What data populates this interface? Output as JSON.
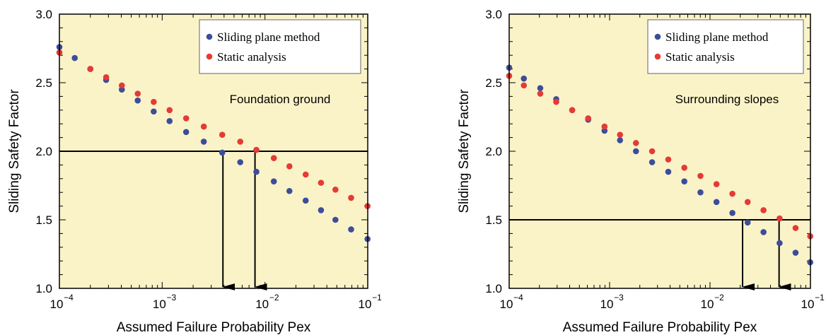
{
  "colors": {
    "plot_bg": "#fbf3c8",
    "sliding_plane": "#3d4d9a",
    "static_analysis": "#e53a35",
    "legend_bg": "#ffffff"
  },
  "chart_data": [
    {
      "type": "scatter",
      "x_scale": "log",
      "xlim": [
        0.0001,
        0.1
      ],
      "ylim": [
        1.0,
        3.0
      ],
      "xlabel": "Assumed Failure Probability Pex",
      "ylabel": "Sliding Safety Factor",
      "x_ticks": [
        {
          "value": 0.0001,
          "base": "10",
          "exp": "−4"
        },
        {
          "value": 0.001,
          "base": "10",
          "exp": "−3"
        },
        {
          "value": 0.01,
          "base": "10",
          "exp": "−2"
        },
        {
          "value": 0.1,
          "base": "10",
          "exp": "−1"
        }
      ],
      "y_ticks": [
        "1.0",
        "1.5",
        "2.0",
        "2.5",
        "3.0"
      ],
      "grid": false,
      "legend_position": "top-right",
      "annotation": "Foundation ground",
      "threshold_y": 2.0,
      "arrows_x": [
        0.0039,
        0.008
      ],
      "series": [
        {
          "name": "Sliding plane method",
          "color": "#3d4d9a",
          "x": [
            0.0001,
            0.000141,
            0.0002,
            0.000285,
            0.000405,
            0.000578,
            0.000827,
            0.00118,
            0.00171,
            0.00254,
            0.00384,
            0.00575,
            0.00825,
            0.0122,
            0.0173,
            0.0249,
            0.0351,
            0.0485,
            0.0689,
            0.0995
          ],
          "y": [
            2.76,
            2.68,
            2.6,
            2.52,
            2.45,
            2.37,
            2.29,
            2.22,
            2.14,
            2.07,
            1.99,
            1.92,
            1.85,
            1.78,
            1.71,
            1.64,
            1.57,
            1.5,
            1.43,
            1.36
          ]
        },
        {
          "name": "Static analysis",
          "color": "#e53a35",
          "x": [
            0.0001,
            0.0002,
            0.000285,
            0.000405,
            0.000578,
            0.000827,
            0.00118,
            0.00171,
            0.00254,
            0.00384,
            0.00575,
            0.00825,
            0.0122,
            0.0173,
            0.0249,
            0.0351,
            0.0485,
            0.0689,
            0.0995
          ],
          "y": [
            2.72,
            2.6,
            2.54,
            2.48,
            2.42,
            2.36,
            2.3,
            2.24,
            2.18,
            2.12,
            2.07,
            2.01,
            1.95,
            1.89,
            1.83,
            1.77,
            1.72,
            1.66,
            1.6
          ]
        }
      ]
    },
    {
      "type": "scatter",
      "x_scale": "log",
      "xlim": [
        0.0001,
        0.1
      ],
      "ylim": [
        1.0,
        3.0
      ],
      "xlabel": "Assumed Failure Probability Pex",
      "ylabel": "Sliding Safety Factor",
      "x_ticks": [
        {
          "value": 0.0001,
          "base": "10",
          "exp": "−4"
        },
        {
          "value": 0.001,
          "base": "10",
          "exp": "−3"
        },
        {
          "value": 0.01,
          "base": "10",
          "exp": "−2"
        },
        {
          "value": 0.1,
          "base": "10",
          "exp": "−1"
        }
      ],
      "y_ticks": [
        "1.0",
        "1.5",
        "2.0",
        "2.5",
        "3.0"
      ],
      "grid": false,
      "legend_position": "top-right",
      "annotation": "Surrounding slopes",
      "threshold_y": 1.5,
      "arrows_x": [
        0.0211,
        0.0487
      ],
      "series": [
        {
          "name": "Sliding plane method",
          "color": "#3d4d9a",
          "x": [
            0.0001,
            0.00014,
            0.000204,
            0.000294,
            0.000424,
            0.000612,
            0.00089,
            0.00127,
            0.00183,
            0.00265,
            0.00384,
            0.00555,
            0.00803,
            0.0116,
            0.0167,
            0.0237,
            0.0341,
            0.0493,
            0.0711,
            0.0995
          ],
          "y": [
            2.61,
            2.53,
            2.46,
            2.38,
            2.3,
            2.23,
            2.15,
            2.08,
            2.0,
            1.92,
            1.85,
            1.78,
            1.7,
            1.63,
            1.55,
            1.48,
            1.41,
            1.33,
            1.26,
            1.19
          ]
        },
        {
          "name": "Static analysis",
          "color": "#e53a35",
          "x": [
            0.0001,
            0.00014,
            0.000204,
            0.000294,
            0.000424,
            0.000612,
            0.00089,
            0.00127,
            0.00183,
            0.00265,
            0.00384,
            0.00555,
            0.00803,
            0.0116,
            0.0167,
            0.0237,
            0.0341,
            0.0493,
            0.0711,
            0.0995
          ],
          "y": [
            2.55,
            2.48,
            2.42,
            2.36,
            2.3,
            2.24,
            2.18,
            2.12,
            2.06,
            2.0,
            1.94,
            1.88,
            1.82,
            1.76,
            1.69,
            1.63,
            1.57,
            1.51,
            1.44,
            1.38
          ]
        }
      ]
    }
  ]
}
